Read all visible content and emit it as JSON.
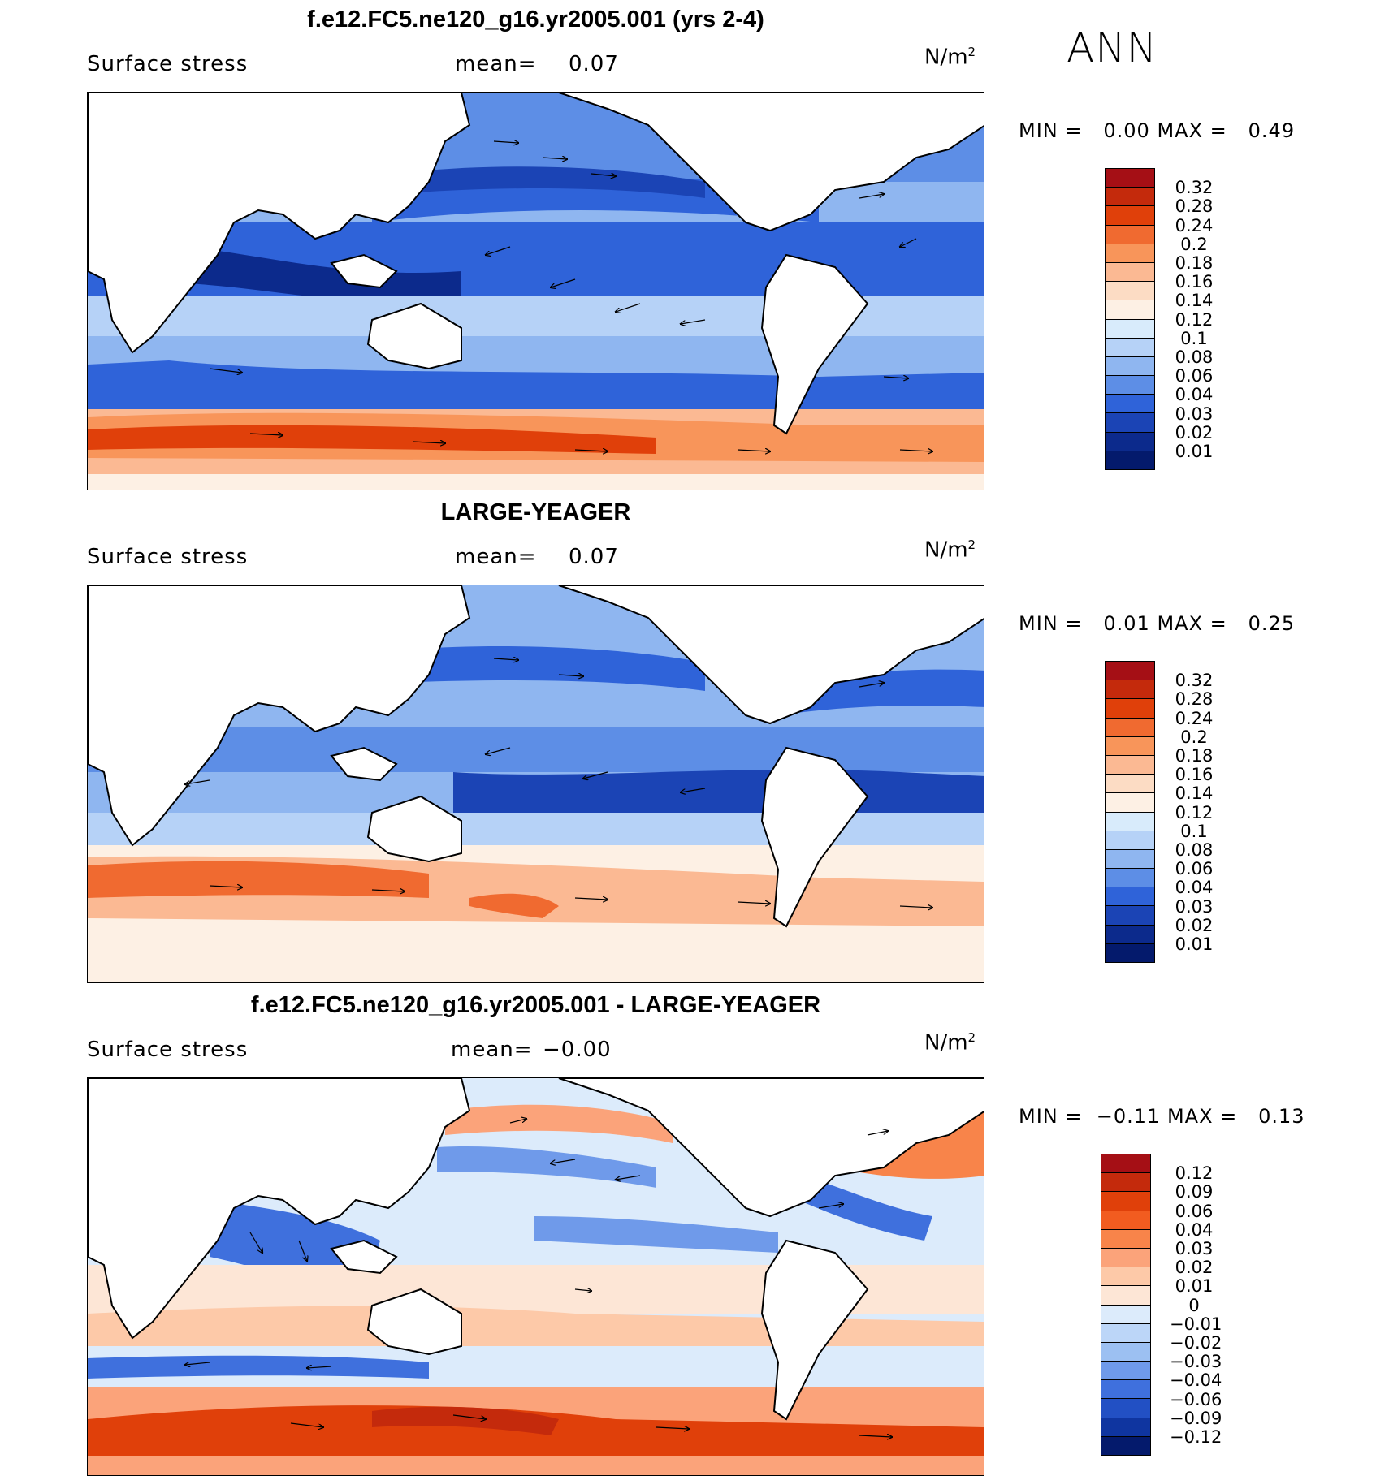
{
  "season": "ANN",
  "units": "N/m",
  "units_exp": "2",
  "panels": [
    {
      "title": "f.e12.FC5.ne120_g16.yr2005.001 (yrs 2-4)",
      "variable": "Surface stress",
      "mean_label": "mean=",
      "mean_value": "0.07",
      "min_label": "MIN =",
      "min_value": "0.00",
      "max_label": "MAX =",
      "max_value": "0.49",
      "colorbar": {
        "labels": [
          "0.32",
          "0.28",
          "0.24",
          "0.2",
          "0.18",
          "0.16",
          "0.14",
          "0.12",
          "0.1",
          "0.08",
          "0.06",
          "0.04",
          "0.03",
          "0.02",
          "0.01"
        ],
        "colors": [
          "#a50f15",
          "#c42a0c",
          "#e0400a",
          "#f06a30",
          "#f8955a",
          "#fbb993",
          "#fcdcc4",
          "#fdf0e4",
          "#d8ebfb",
          "#b6d2f7",
          "#8fb6f0",
          "#5d8ee6",
          "#2f63d9",
          "#1b44b5",
          "#0c2a8c",
          "#041a6c"
        ]
      }
    },
    {
      "title": "LARGE-YEAGER",
      "variable": "Surface stress",
      "mean_label": "mean=",
      "mean_value": "0.07",
      "min_label": "MIN =",
      "min_value": "0.01",
      "max_label": "MAX =",
      "max_value": "0.25",
      "colorbar": {
        "labels": [
          "0.32",
          "0.28",
          "0.24",
          "0.2",
          "0.18",
          "0.16",
          "0.14",
          "0.12",
          "0.1",
          "0.08",
          "0.06",
          "0.04",
          "0.03",
          "0.02",
          "0.01"
        ],
        "colors": [
          "#a50f15",
          "#c42a0c",
          "#e0400a",
          "#f06a30",
          "#f8955a",
          "#fbb993",
          "#fcdcc4",
          "#fdf0e4",
          "#d8ebfb",
          "#b6d2f7",
          "#8fb6f0",
          "#5d8ee6",
          "#2f63d9",
          "#1b44b5",
          "#0c2a8c",
          "#041a6c"
        ]
      }
    },
    {
      "title": "f.e12.FC5.ne120_g16.yr2005.001 - LARGE-YEAGER",
      "variable": "Surface stress",
      "mean_label": "mean=",
      "mean_value": "−0.00",
      "min_label": "MIN =",
      "min_value": "−0.11",
      "max_label": "MAX =",
      "max_value": "0.13",
      "colorbar": {
        "labels": [
          "0.12",
          "0.09",
          "0.06",
          "0.04",
          "0.03",
          "0.02",
          "0.01",
          "0",
          "−0.01",
          "−0.02",
          "−0.03",
          "−0.04",
          "−0.06",
          "−0.09",
          "−0.12"
        ],
        "colors": [
          "#a50f15",
          "#c42a0c",
          "#e0400a",
          "#f25c20",
          "#f8844a",
          "#fba37a",
          "#fdc9a8",
          "#fde6d6",
          "#dcebfb",
          "#bcd6f8",
          "#9cc0f2",
          "#6f9aea",
          "#3f70dd",
          "#2250c4",
          "#0f35a0",
          "#041a6c"
        ]
      }
    }
  ],
  "map_colors": {
    "land": "#ffffff",
    "coast": "#000000"
  }
}
